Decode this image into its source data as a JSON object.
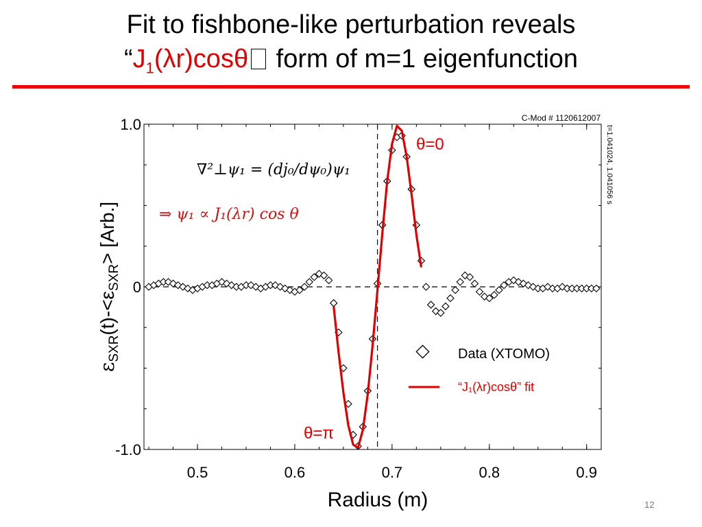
{
  "slide": {
    "title_line1": "Fit to fishbone-like perturbation reveals",
    "title_line2_quote": "“",
    "title_line2_red_1": "J",
    "title_line2_red_sub": "1",
    "title_line2_red_2": "(λr)cosθ",
    "title_line2_box": "",
    "title_line2_rest": " form of m=1 eigenfunction",
    "slide_number": "12",
    "accent_color": "#ee0000"
  },
  "chart_data": {
    "type": "scatter",
    "shot_label": "C-Mod # 1120612007",
    "time_label": "t=1.041024, 1.041056 s",
    "xlabel": "Radius (m)",
    "ylabel_main": "ε",
    "ylabel_sub1": "SXR",
    "ylabel_mid": "(t)-<ε",
    "ylabel_sub2": "SXR",
    "ylabel_end": "> [Arb.]",
    "xlim": [
      0.445,
      0.915
    ],
    "ylim": [
      -1.0,
      1.0
    ],
    "x_ticks": [
      0.5,
      0.6,
      0.7,
      0.8,
      0.9
    ],
    "x_tick_labels": [
      "0.5",
      "0.6",
      "0.7",
      "0.8",
      "0.9"
    ],
    "y_ticks": [
      -1.0,
      0,
      1.0
    ],
    "y_tick_labels": [
      "-1.0",
      "0",
      "1.0"
    ],
    "zero_line": 0,
    "vertical_line_x": 0.685,
    "equation1": "∇²⊥ψ₁ = (dj₀/dψ₀)ψ₁",
    "equation2": "⇒ ψ₁ ∝ J₁(λr) cos θ",
    "annotation_top": "θ=0",
    "annotation_bottom": "θ=π",
    "legend": {
      "placement": "bottom-right",
      "data_label": "Data (XTOMO)",
      "fit_label": "“J₁(λr)cosθ” fit"
    },
    "series": [
      {
        "name": "Data (XTOMO)",
        "marker": "diamond",
        "color": "#000000",
        "x": [
          0.45,
          0.455,
          0.46,
          0.465,
          0.47,
          0.475,
          0.48,
          0.485,
          0.49,
          0.495,
          0.5,
          0.505,
          0.51,
          0.515,
          0.52,
          0.525,
          0.53,
          0.535,
          0.54,
          0.545,
          0.55,
          0.555,
          0.56,
          0.565,
          0.57,
          0.575,
          0.58,
          0.585,
          0.59,
          0.595,
          0.6,
          0.605,
          0.61,
          0.615,
          0.62,
          0.625,
          0.63,
          0.635,
          0.64,
          0.645,
          0.65,
          0.655,
          0.66,
          0.665,
          0.67,
          0.675,
          0.68,
          0.685,
          0.69,
          0.695,
          0.7,
          0.705,
          0.71,
          0.715,
          0.72,
          0.725,
          0.73,
          0.735,
          0.74,
          0.745,
          0.75,
          0.755,
          0.76,
          0.765,
          0.77,
          0.775,
          0.78,
          0.785,
          0.79,
          0.795,
          0.8,
          0.805,
          0.81,
          0.815,
          0.82,
          0.825,
          0.83,
          0.835,
          0.84,
          0.845,
          0.85,
          0.855,
          0.86,
          0.865,
          0.87,
          0.875,
          0.88,
          0.885,
          0.89,
          0.895,
          0.9,
          0.905,
          0.91
        ],
        "y": [
          0.0,
          0.01,
          0.02,
          0.03,
          0.03,
          0.02,
          0.01,
          0.0,
          -0.01,
          -0.02,
          -0.01,
          0.0,
          0.01,
          0.01,
          0.02,
          0.03,
          0.02,
          0.01,
          0.0,
          0.0,
          0.01,
          0.01,
          0.0,
          -0.01,
          0.0,
          0.01,
          0.01,
          0.0,
          -0.01,
          -0.02,
          -0.03,
          -0.02,
          0.0,
          0.03,
          0.06,
          0.08,
          0.07,
          0.04,
          -0.1,
          -0.28,
          -0.5,
          -0.72,
          -0.91,
          -0.98,
          -0.86,
          -0.64,
          -0.32,
          0.02,
          0.38,
          0.65,
          0.84,
          0.92,
          0.93,
          0.8,
          0.6,
          0.38,
          0.16,
          0.0,
          -0.11,
          -0.15,
          -0.16,
          -0.12,
          -0.07,
          -0.02,
          0.03,
          0.07,
          0.06,
          0.02,
          -0.03,
          -0.06,
          -0.07,
          -0.05,
          -0.02,
          0.01,
          0.03,
          0.04,
          0.03,
          0.02,
          0.01,
          0.0,
          -0.01,
          -0.01,
          0.0,
          -0.01,
          -0.01,
          0.0,
          -0.01,
          -0.01,
          -0.01,
          -0.01,
          -0.01,
          -0.01,
          -0.01
        ]
      },
      {
        "name": "“J₁(λr)cosθ” fit",
        "type": "line",
        "color": "#e00000",
        "x": [
          0.64,
          0.645,
          0.65,
          0.655,
          0.66,
          0.665,
          0.67,
          0.675,
          0.68,
          0.685,
          0.69,
          0.695,
          0.7,
          0.705,
          0.71,
          0.715,
          0.72,
          0.725,
          0.73
        ],
        "y": [
          -0.12,
          -0.4,
          -0.65,
          -0.85,
          -0.97,
          -0.99,
          -0.88,
          -0.66,
          -0.36,
          -0.02,
          0.33,
          0.65,
          0.88,
          0.99,
          0.96,
          0.8,
          0.57,
          0.32,
          0.12
        ]
      }
    ]
  }
}
